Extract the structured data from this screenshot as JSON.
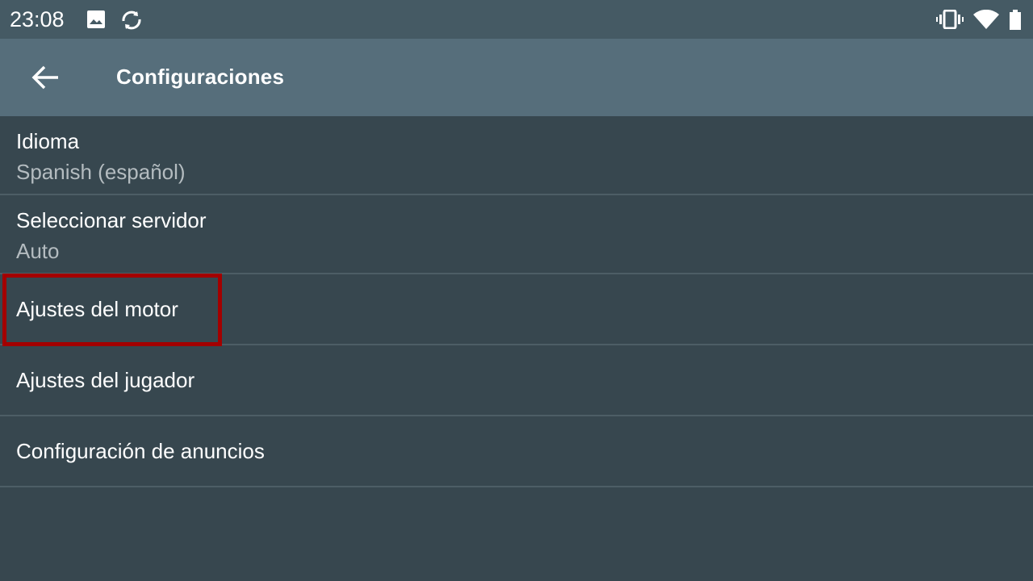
{
  "status_bar": {
    "time": "23:08",
    "icons": [
      "image-icon",
      "sync-icon",
      "vibrate-icon",
      "wifi-icon",
      "battery-icon"
    ]
  },
  "app_bar": {
    "title": "Configuraciones",
    "back_icon": "arrow-left-icon"
  },
  "settings": [
    {
      "title": "Idioma",
      "subtitle": "Spanish (español)"
    },
    {
      "title": "Seleccionar servidor",
      "subtitle": "Auto"
    },
    {
      "title": "Ajustes del motor"
    },
    {
      "title": "Ajustes del jugador"
    },
    {
      "title": "Configuración de anuncios"
    }
  ],
  "highlight_color": "#a30000"
}
